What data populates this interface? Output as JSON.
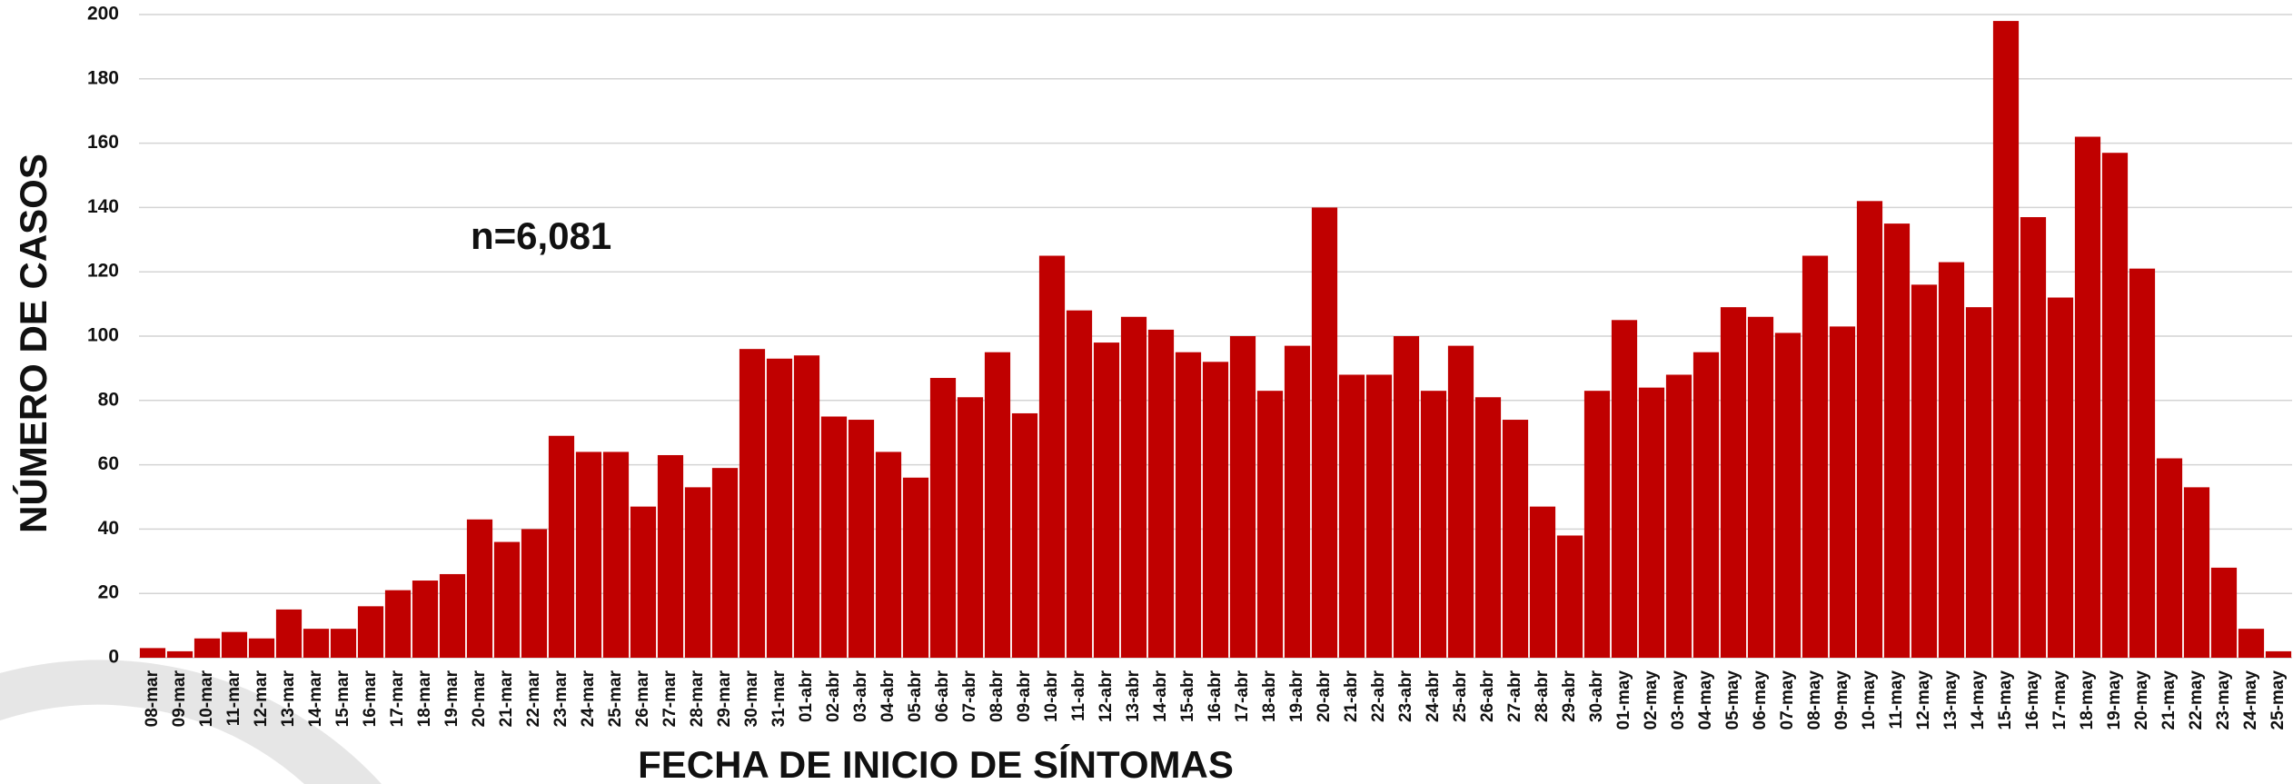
{
  "chart_data": {
    "type": "bar",
    "x_label": "FECHA DE INICIO DE SÍNTOMAS",
    "y_label": "NÚMERO DE CASOS",
    "annotation": "n=6,081",
    "categories": [
      "08-mar",
      "09-mar",
      "10-mar",
      "11-mar",
      "12-mar",
      "13-mar",
      "14-mar",
      "15-mar",
      "16-mar",
      "17-mar",
      "18-mar",
      "19-mar",
      "20-mar",
      "21-mar",
      "22-mar",
      "23-mar",
      "24-mar",
      "25-mar",
      "26-mar",
      "27-mar",
      "28-mar",
      "29-mar",
      "30-mar",
      "31-mar",
      "01-abr",
      "02-abr",
      "03-abr",
      "04-abr",
      "05-abr",
      "06-abr",
      "07-abr",
      "08-abr",
      "09-abr",
      "10-abr",
      "11-abr",
      "12-abr",
      "13-abr",
      "14-abr",
      "15-abr",
      "16-abr",
      "17-abr",
      "18-abr",
      "19-abr",
      "20-abr",
      "21-abr",
      "22-abr",
      "23-abr",
      "24-abr",
      "25-abr",
      "26-abr",
      "27-abr",
      "28-abr",
      "29-abr",
      "30-abr",
      "01-may",
      "02-may",
      "03-may",
      "04-may",
      "05-may",
      "06-may",
      "07-may",
      "08-may",
      "09-may",
      "10-may",
      "11-may",
      "12-may",
      "13-may",
      "14-may",
      "15-may",
      "16-may",
      "17-may",
      "18-may",
      "19-may",
      "20-may",
      "21-may",
      "22-may",
      "23-may",
      "24-may",
      "25-may"
    ],
    "values": [
      3,
      2,
      6,
      8,
      6,
      15,
      9,
      9,
      16,
      21,
      24,
      26,
      43,
      36,
      40,
      69,
      64,
      64,
      47,
      63,
      53,
      59,
      96,
      93,
      94,
      75,
      74,
      64,
      56,
      87,
      81,
      95,
      76,
      125,
      108,
      98,
      106,
      102,
      95,
      92,
      100,
      83,
      97,
      140,
      88,
      88,
      100,
      83,
      97,
      81,
      74,
      47,
      38,
      83,
      105,
      84,
      88,
      95,
      109,
      106,
      101,
      125,
      103,
      142,
      135,
      116,
      123,
      109,
      198,
      137,
      112,
      162,
      157,
      121,
      62,
      53,
      28,
      9,
      2
    ],
    "color": "#c00000",
    "ylim": [
      0,
      200
    ],
    "yticks": [
      0,
      20,
      40,
      60,
      80,
      100,
      120,
      140,
      160,
      180,
      200
    ],
    "grid": true
  }
}
